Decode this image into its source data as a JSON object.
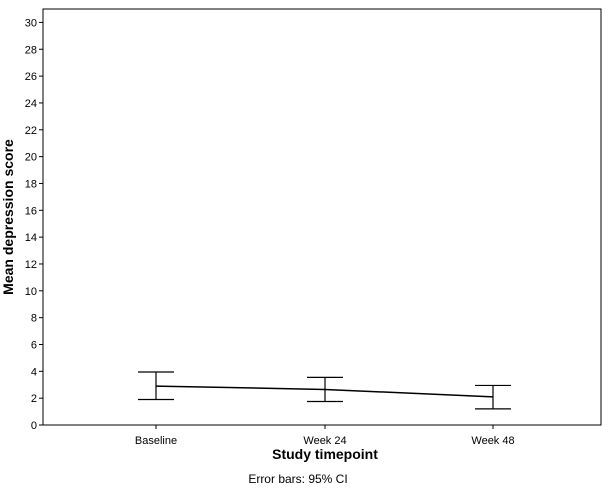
{
  "chart_data": {
    "type": "line",
    "title": "",
    "xlabel": "Study timepoint",
    "ylabel": "Mean depression score",
    "footnote": "Error bars: 95% CI",
    "categories": [
      "Baseline",
      "Week 24",
      "Week 48"
    ],
    "series": [
      {
        "values": [
          2.9,
          2.65,
          2.1
        ],
        "ci_lower": [
          1.9,
          1.75,
          1.2
        ],
        "ci_upper": [
          3.95,
          3.55,
          2.95
        ]
      }
    ],
    "ylim": [
      0,
      31
    ],
    "yticks": [
      "0",
      "2",
      "4",
      "6",
      "8",
      "10",
      "12",
      "14",
      "16",
      "18",
      "20",
      "22",
      "24",
      "26",
      "28",
      "30"
    ],
    "grid": false,
    "legend": "none",
    "colors": {
      "line": "#000000",
      "frame": "#000000",
      "background": "#ffffff"
    }
  }
}
